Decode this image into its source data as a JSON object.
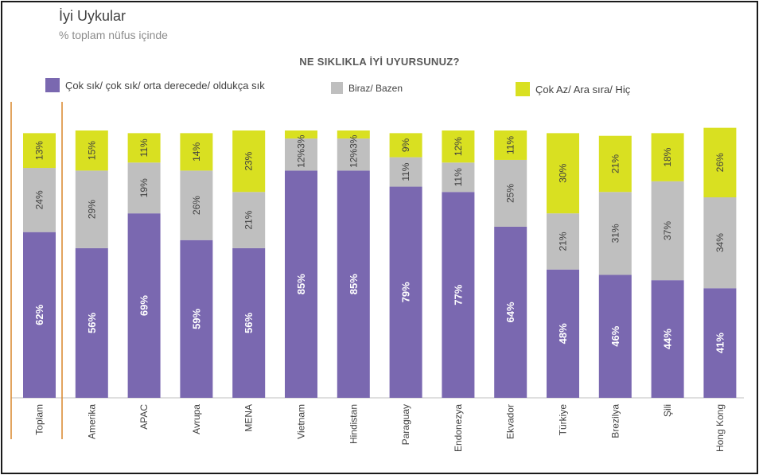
{
  "title": "İyi Uykular",
  "subtitle": "% toplam nüfus içinde",
  "chart_data": {
    "type": "bar",
    "stacked": true,
    "question": "NE SIKLIKLA İYİ UYURSUNUZ?",
    "categories": [
      "Toplam",
      "Amerika",
      "APAC",
      "Avrupa",
      "MENA",
      "Vietnam",
      "Hindistan",
      "Paraguay",
      "Endonezya",
      "Ekvador",
      "Türkiye",
      "Brezilya",
      "Şili",
      "Hong Kong"
    ],
    "series": [
      {
        "name": "Çok sık/ çok sık/ orta derecede/ oldukça sık",
        "color": "#7a68b0",
        "label_color": "#ffffff",
        "values": [
          62,
          56,
          69,
          59,
          56,
          85,
          85,
          79,
          77,
          64,
          48,
          46,
          44,
          41
        ],
        "labels": [
          "62%",
          "56%",
          "69%",
          "59%",
          "56%",
          "85%",
          "85%",
          "79%",
          "77%",
          "64%",
          "48%",
          "46%",
          "44%",
          "41%"
        ]
      },
      {
        "name": "Biraz/ Bazen",
        "color": "#bfbfbf",
        "label_color": "#404040",
        "values": [
          24,
          29,
          19,
          26,
          21,
          12,
          12,
          11,
          11,
          25,
          21,
          31,
          37,
          34
        ],
        "labels": [
          "24%",
          "29%",
          "19%",
          "26%",
          "21%",
          "12%",
          "12%",
          "11%",
          "11%",
          "25%",
          "21%",
          "31%",
          "37%",
          "34%"
        ]
      },
      {
        "name": "Çok Az/ Ara sıra/ Hiç",
        "color": "#d9e021",
        "label_color": "#404040",
        "values": [
          13,
          15,
          11,
          14,
          23,
          3,
          3,
          9,
          12,
          11,
          30,
          21,
          18,
          26
        ],
        "labels": [
          "13%",
          "15%",
          "11%",
          "14%",
          "23%",
          "3%",
          "3%",
          "9%",
          "12%",
          "11%",
          "30%",
          "21%",
          "18%",
          "26%"
        ]
      }
    ],
    "combined_labels": {
      "5": "12%3%",
      "6": "12%3%"
    },
    "ylim": [
      0,
      100
    ],
    "separator_color": "#d9862a",
    "legend_position": "top"
  }
}
